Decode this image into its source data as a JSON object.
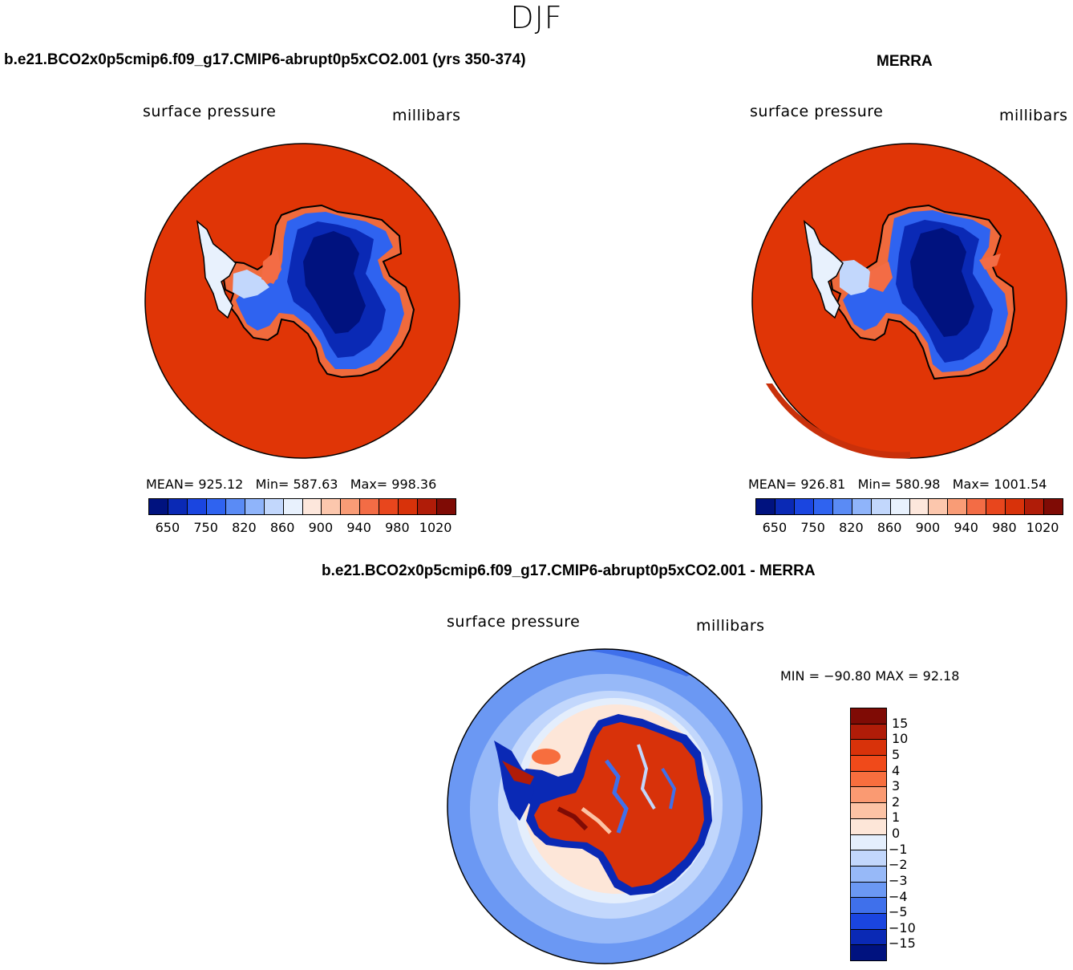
{
  "figure": {
    "title": "DJF"
  },
  "panels": {
    "model": {
      "title": "b.e21.BCO2x0p5cmip6.f09_g17.CMIP6-abrupt0p5xCO2.001 (yrs 350-374)",
      "variable": "surface pressure",
      "units": "millibars",
      "mean_label": "MEAN=",
      "mean": "925.12",
      "min_label": "Min=",
      "min": "587.63",
      "max_label": "Max=",
      "max": "998.36"
    },
    "obs": {
      "title": "MERRA",
      "variable": "surface pressure",
      "units": "millibars",
      "mean_label": "MEAN=",
      "mean": "926.81",
      "min_label": "Min=",
      "min": "580.98",
      "max_label": "Max=",
      "max": "1001.54"
    },
    "diff": {
      "title": "b.e21.BCO2x0p5cmip6.f09_g17.CMIP6-abrupt0p5xCO2.001 - MERRA",
      "variable": "surface pressure",
      "units": "millibars",
      "minmax_text": "MIN = −90.80  MAX =   92.18"
    }
  },
  "colorbar_abs": {
    "tick_labels": [
      "650",
      "750",
      "820",
      "860",
      "900",
      "940",
      "980",
      "1020"
    ],
    "colors": [
      "#00127f",
      "#0a29b5",
      "#1a45e0",
      "#2f63f0",
      "#5a8bf5",
      "#8fb4fa",
      "#c2d7fc",
      "#e8f1fd",
      "#fde7dc",
      "#fcc7ad",
      "#f99c76",
      "#f36c45",
      "#e8461d",
      "#d8320a",
      "#b01c08",
      "#7f0b05"
    ]
  },
  "colorbar_diff": {
    "tick_labels": [
      "15",
      "10",
      "5",
      "4",
      "3",
      "2",
      "1",
      "0",
      "−1",
      "−2",
      "−3",
      "−4",
      "−5",
      "−10",
      "−15"
    ],
    "colors": [
      "#7f0b05",
      "#b01c08",
      "#d8320a",
      "#f04a1a",
      "#f76e3e",
      "#fa9a72",
      "#fcc3a5",
      "#fde6d8",
      "#e4eefc",
      "#c2d7fc",
      "#97b9f8",
      "#6b98f3",
      "#3f70eb",
      "#1a45e0",
      "#0a29b5",
      "#00127f"
    ]
  }
}
